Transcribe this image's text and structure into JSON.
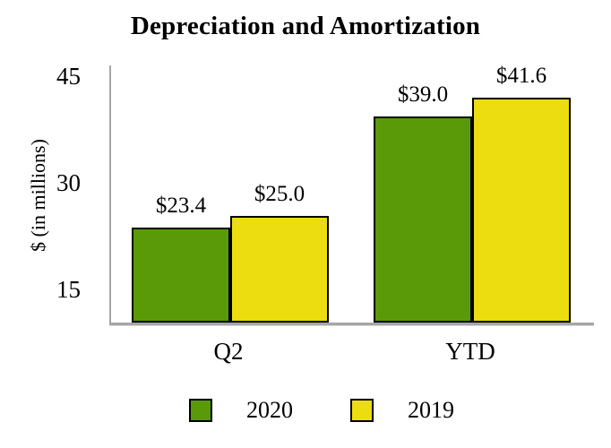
{
  "chart_data": {
    "type": "bar",
    "title": "Depreciation and Amortization",
    "ylabel": "$ (in millions)",
    "categories": [
      "Q2",
      "YTD"
    ],
    "series": [
      {
        "name": "2020",
        "color": "#5a9a08",
        "values": [
          23.4,
          39.0
        ],
        "value_labels": [
          "$23.4",
          "$39.0"
        ]
      },
      {
        "name": "2019",
        "color": "#ebdd10",
        "values": [
          25.0,
          41.6
        ],
        "value_labels": [
          "$25.0",
          "$41.6"
        ]
      }
    ],
    "yticks": [
      15,
      30,
      45
    ],
    "ylim": [
      10,
      45
    ],
    "grid": false,
    "legend_position": "bottom",
    "axis_color": "#a6a6a6",
    "bar_border_color": "#000000"
  }
}
